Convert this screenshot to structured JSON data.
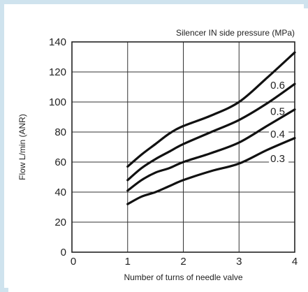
{
  "chart_data": {
    "type": "line",
    "title": "Silencer IN side pressure (MPa)",
    "xlabel": "Number of turns of needle valve",
    "ylabel": "Flow L/min (ANR)",
    "xlim": [
      0,
      4
    ],
    "ylim": [
      0,
      140
    ],
    "xticks": [
      "0",
      "1",
      "2",
      "3",
      "4"
    ],
    "yticks": [
      "0",
      "20",
      "40",
      "60",
      "80",
      "100",
      "120",
      "140"
    ],
    "grid": true,
    "series": [
      {
        "name": "0.6",
        "x": [
          1,
          1.25,
          1.5,
          1.75,
          2,
          2.5,
          3,
          3.5,
          4
        ],
        "y": [
          57,
          65,
          72,
          79,
          84,
          91,
          100,
          116,
          133
        ]
      },
      {
        "name": "0.5",
        "x": [
          1,
          1.25,
          1.5,
          1.75,
          2,
          2.5,
          3,
          3.5,
          4
        ],
        "y": [
          48,
          56,
          62,
          67,
          72,
          80,
          88,
          99,
          112
        ]
      },
      {
        "name": "0.4",
        "x": [
          1,
          1.25,
          1.5,
          1.75,
          2,
          2.5,
          3,
          3.5,
          4
        ],
        "y": [
          41,
          48,
          53,
          56,
          60,
          66,
          73,
          84,
          95
        ]
      },
      {
        "name": "0.3",
        "x": [
          1,
          1.25,
          1.5,
          1.75,
          2,
          2.5,
          3,
          3.5,
          4
        ],
        "y": [
          32,
          37,
          40,
          44,
          48,
          54,
          59,
          68,
          76
        ]
      }
    ]
  }
}
